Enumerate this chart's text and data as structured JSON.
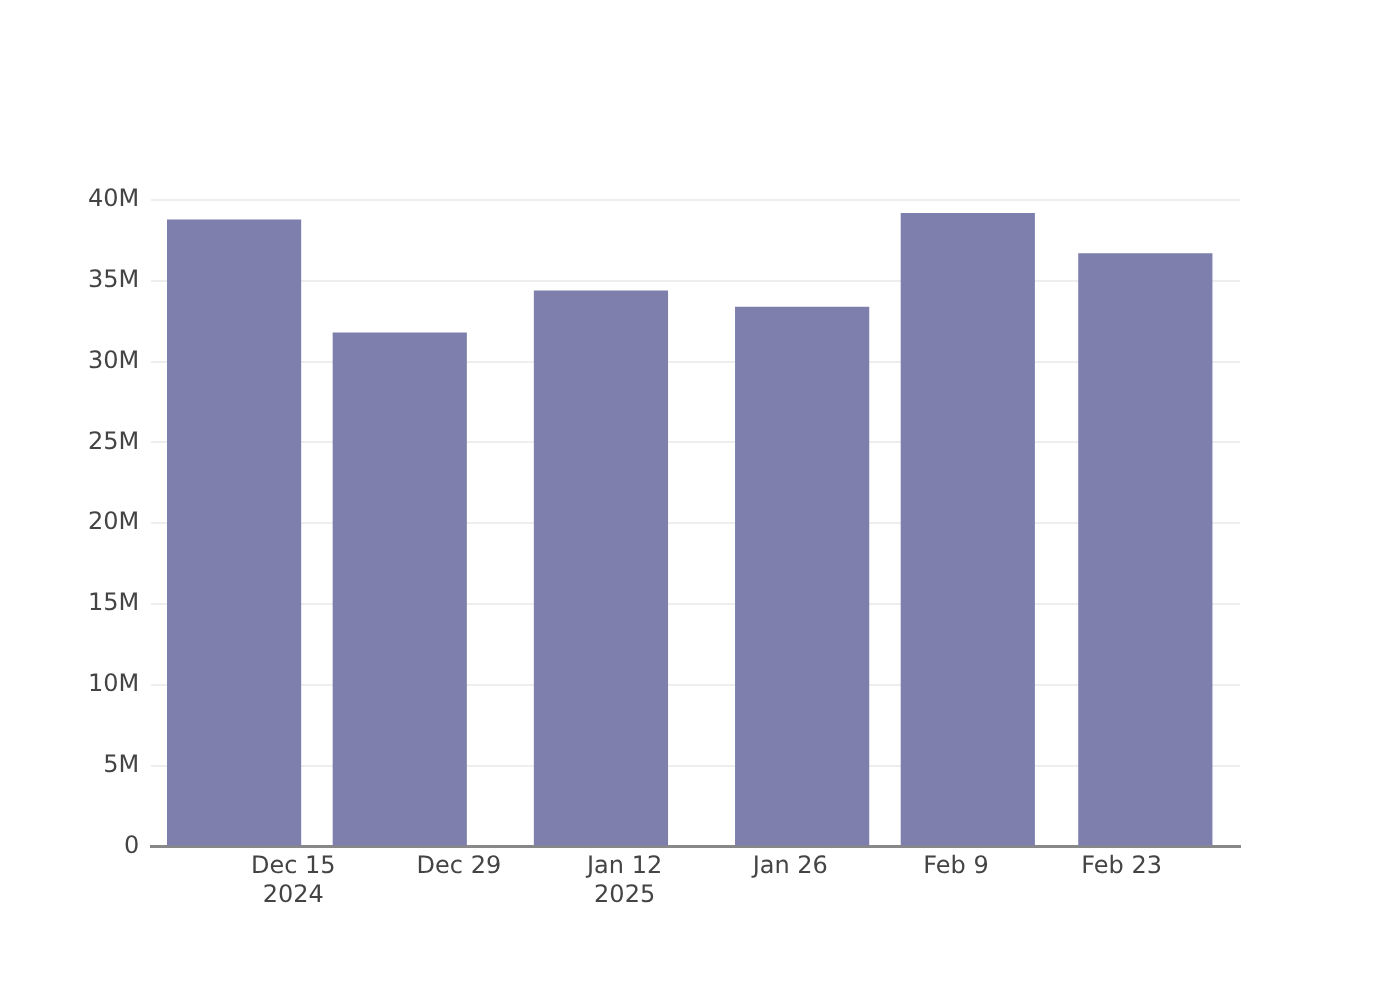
{
  "chart_data": {
    "type": "bar",
    "x": [
      "2024-12-10",
      "2024-12-24",
      "2025-01-10",
      "2025-01-27",
      "2025-02-10",
      "2025-02-25"
    ],
    "values": [
      38800000,
      31800000,
      34400000,
      33400000,
      39200000,
      36700000
    ],
    "color": "#7f7fae",
    "xlim": [
      "2024-12-03",
      "2025-03-05"
    ],
    "xticks": [
      {
        "value": "2024-12-15",
        "label": "Dec 15\n2024"
      },
      {
        "value": "2024-12-29",
        "label": "Dec 29"
      },
      {
        "value": "2025-01-12",
        "label": "Jan 12\n2025"
      },
      {
        "value": "2025-01-26",
        "label": "Jan 26"
      },
      {
        "value": "2025-02-09",
        "label": "Feb 9"
      },
      {
        "value": "2025-02-23",
        "label": "Feb 23"
      }
    ],
    "ylim": [
      0,
      40000000
    ],
    "yticks": [
      0,
      {
        "value": 5000000,
        "label": "5M"
      },
      {
        "value": 10000000,
        "label": "10M"
      },
      {
        "value": 15000000,
        "label": "15M"
      },
      {
        "value": 20000000,
        "label": "20M"
      },
      {
        "value": 25000000,
        "label": "25M"
      },
      {
        "value": 30000000,
        "label": "30M"
      },
      {
        "value": 35000000,
        "label": "35M"
      },
      {
        "value": 40000000,
        "label": "40M"
      }
    ],
    "grid": "y"
  }
}
